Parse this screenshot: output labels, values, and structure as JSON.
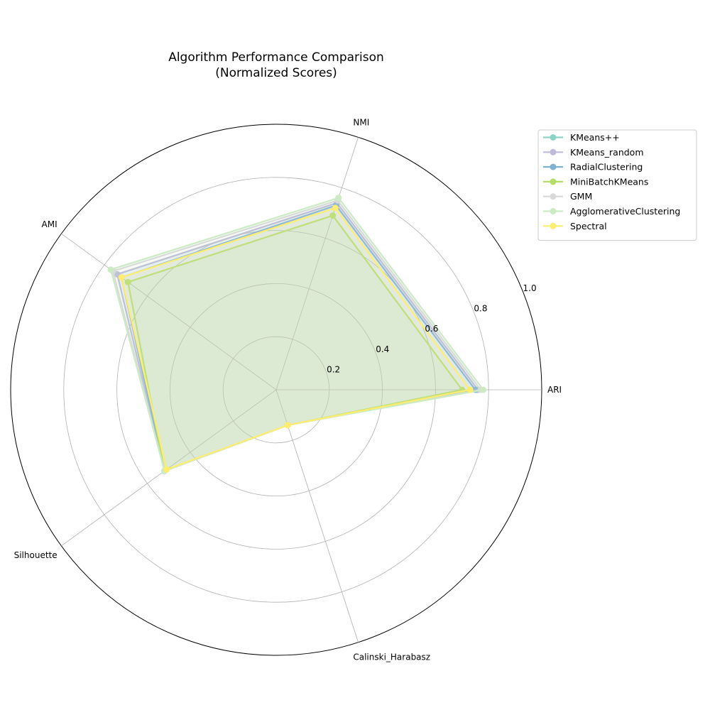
{
  "chart_data": {
    "type": "radar",
    "title_line1": "Algorithm Performance Comparison",
    "title_line2": "(Normalized Scores)",
    "axes": [
      "ARI",
      "NMI",
      "AMI",
      "Silhouette",
      "Calinski_Harabasz"
    ],
    "rlim": [
      0,
      1.0
    ],
    "radial_ticks": [
      0.2,
      0.4,
      0.6,
      0.8,
      1.0
    ],
    "radial_tick_labels": [
      "0.2",
      "0.4",
      "0.6",
      "0.8",
      "1.0"
    ],
    "grid": true,
    "legend_position": "upper right, outside plot",
    "fill_opacity": 0.1,
    "series": [
      {
        "name": "KMeans++",
        "color": "#8dd3c7",
        "values": [
          0.76,
          0.74,
          0.74,
          0.52,
          0.14
        ]
      },
      {
        "name": "KMeans_random",
        "color": "#bebada",
        "values": [
          0.76,
          0.74,
          0.74,
          0.52,
          0.14
        ]
      },
      {
        "name": "RadialClustering",
        "color": "#80b1d3",
        "values": [
          0.75,
          0.73,
          0.72,
          0.52,
          0.14
        ]
      },
      {
        "name": "MiniBatchKMeans",
        "color": "#b3de69",
        "values": [
          0.7,
          0.69,
          0.69,
          0.52,
          0.14
        ]
      },
      {
        "name": "GMM",
        "color": "#d9d9d9",
        "values": [
          0.77,
          0.75,
          0.76,
          0.52,
          0.14
        ]
      },
      {
        "name": "AgglomerativeClustering",
        "color": "#ccebc5",
        "values": [
          0.78,
          0.76,
          0.77,
          0.52,
          0.14
        ]
      },
      {
        "name": "Spectral",
        "color": "#ffed6f",
        "values": [
          0.73,
          0.72,
          0.72,
          0.51,
          0.14
        ]
      }
    ]
  }
}
